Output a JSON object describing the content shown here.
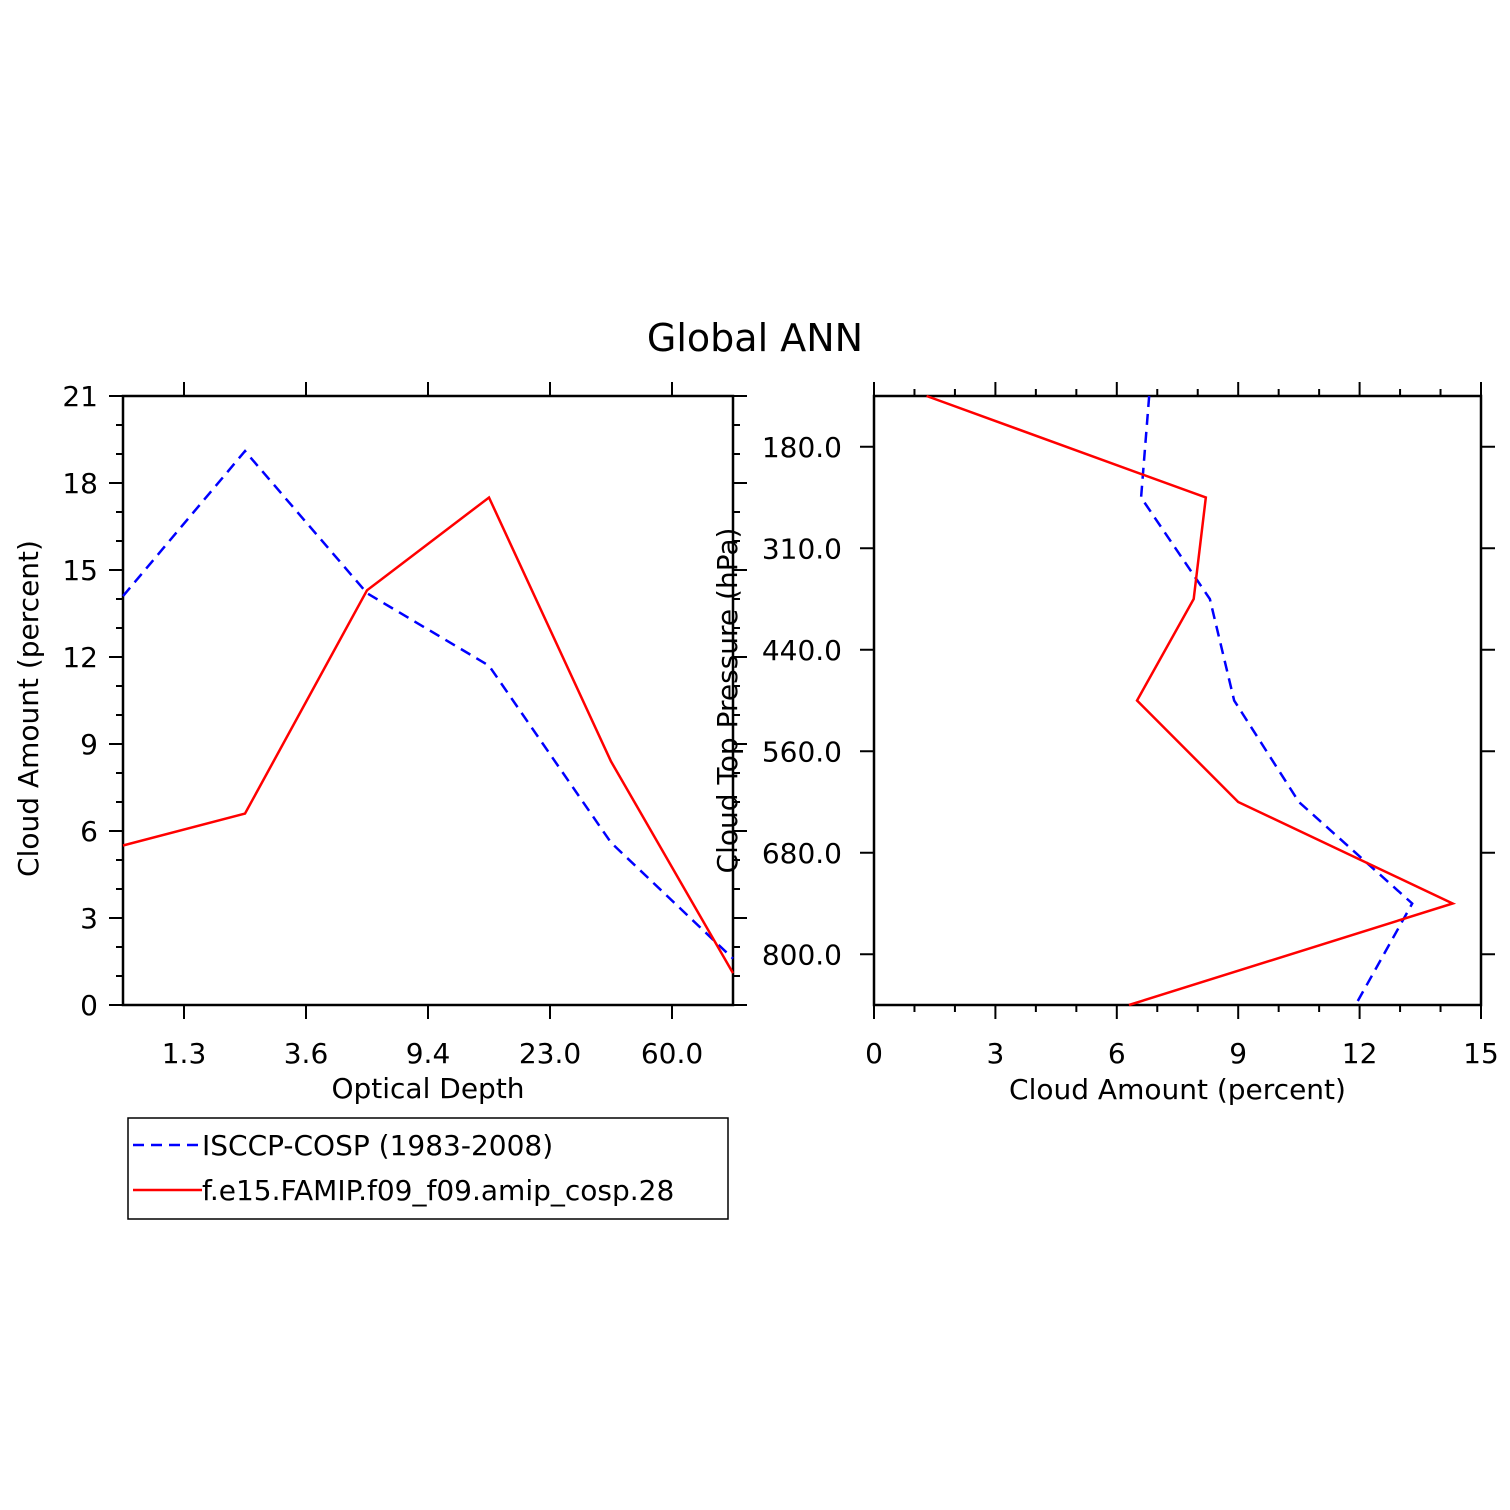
{
  "title": "Global ANN",
  "colors": {
    "obs": "#0000ff",
    "model": "#ff0000",
    "axis": "#000000"
  },
  "legend": {
    "entries": [
      {
        "label": "ISCCP-COSP (1983-2008)",
        "style": "dashed",
        "color": "#0000ff"
      },
      {
        "label": "f.e15.FAMIP.f09_f09.amip_cosp.28",
        "style": "solid",
        "color": "#ff0000"
      }
    ]
  },
  "chart_data": [
    {
      "type": "line",
      "xlabel": "Optical Depth",
      "ylabel": "Cloud Amount (percent)",
      "ylim": [
        0,
        21
      ],
      "yticks": [
        0,
        3,
        6,
        9,
        12,
        15,
        18,
        21
      ],
      "xtick_labels": [
        "1.3",
        "3.6",
        "9.4",
        "23.0",
        "60.0"
      ],
      "x_bins": 5,
      "series": [
        {
          "name": "ISCCP-COSP (1983-2008)",
          "x": [
            0,
            1,
            2,
            3,
            4,
            5
          ],
          "values": [
            14.1,
            19.1,
            14.2,
            11.7,
            5.6,
            1.6
          ]
        },
        {
          "name": "f.e15.FAMIP.f09_f09.amip_cosp.28",
          "x": [
            0,
            1,
            2,
            3,
            4,
            5
          ],
          "values": [
            5.5,
            6.6,
            14.3,
            17.5,
            8.4,
            1.1
          ]
        }
      ]
    },
    {
      "type": "line",
      "xlabel": "Cloud Amount (percent)",
      "ylabel": "Cloud Top Pressure (hPa)",
      "xlim": [
        0,
        15
      ],
      "xticks": [
        0,
        3,
        6,
        9,
        12,
        15
      ],
      "ytick_labels": [
        "180.0",
        "310.0",
        "440.0",
        "560.0",
        "680.0",
        "800.0"
      ],
      "y_bins": 6,
      "series": [
        {
          "name": "ISCCP-COSP (1983-2008)",
          "y": [
            0,
            1,
            2,
            3,
            4,
            5,
            6
          ],
          "values": [
            6.8,
            6.6,
            8.3,
            8.9,
            10.5,
            13.3,
            11.9
          ]
        },
        {
          "name": "f.e15.FAMIP.f09_f09.amip_cosp.28",
          "y": [
            0,
            1,
            2,
            3,
            4,
            5,
            6
          ],
          "values": [
            1.3,
            8.2,
            7.9,
            6.5,
            9.0,
            14.3,
            6.3
          ]
        }
      ]
    }
  ]
}
